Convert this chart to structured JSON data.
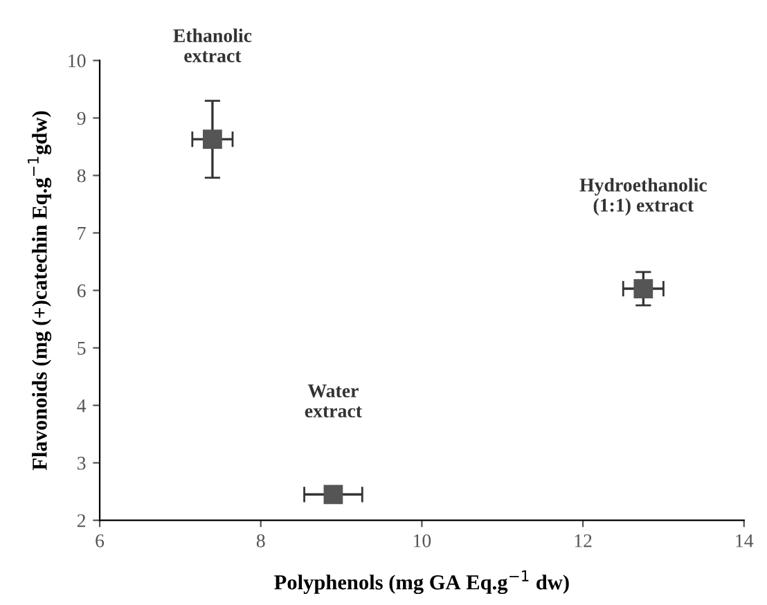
{
  "chart_data": {
    "type": "scatter",
    "xlabel": "Polyphenols (mg GA Eq.g$^{−1}$ dw)",
    "ylabel": "Flavonoids (mg (+)catechin Eq.g$^{−1}$gdw)",
    "x": [
      7.4,
      8.9,
      12.75
    ],
    "series": [
      {
        "color": "#555555",
        "values": [
          8.63,
          2.45,
          6.03
        ],
        "errors": [
          0.67,
          null,
          0.29
        ],
        "xerrors": [
          0.25,
          0.36,
          0.25
        ]
      }
    ],
    "annotations": [
      "Ethanolic\nextract",
      "Water\nextract",
      "Hydroethanolic\n(1:1) extract"
    ],
    "xlim": [
      6,
      14
    ],
    "ylim": [
      2,
      10
    ],
    "xticks": [
      6,
      8,
      10,
      12,
      14
    ],
    "yticks": [
      2,
      3,
      4,
      5,
      6,
      7,
      8,
      9,
      10
    ],
    "marker": "square",
    "grid": false,
    "legend": false
  }
}
